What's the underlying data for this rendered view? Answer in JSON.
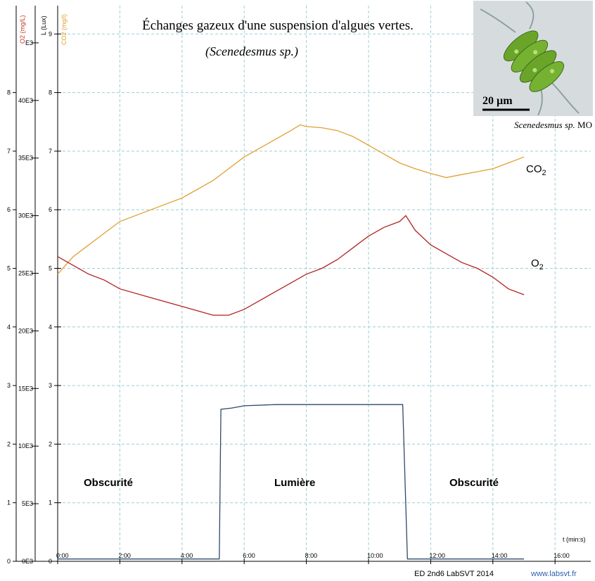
{
  "title": "Échanges gazeux d'une suspension d'algues vertes.",
  "subtitle": "(Scenedesmus sp.)",
  "photo": {
    "scale_bar": "20 µm",
    "caption_species": "Scenedesmus sp.",
    "caption_suffix": " MO"
  },
  "labels": {
    "co2_main": "CO",
    "co2_sub": "2",
    "o2_main": "O",
    "o2_sub": "2",
    "phase_dark_1": "Obscurité",
    "phase_light": "Lumière",
    "phase_dark_2": "Obscurité"
  },
  "axis_names": {
    "o2": "O2 (mg/L)",
    "lux": "L (Lux)",
    "co2": "CO2 (mg/l)",
    "time": "t (min:s)"
  },
  "footer": {
    "left": "ED 2nd6 LabSVT 2014",
    "right": "www.labsvt.fr"
  },
  "colors": {
    "o2": "#b22222",
    "co2": "#e0a030",
    "light": "#2e4a68",
    "grid": "#9ecdd6",
    "o2_axis_label": "#c0392b",
    "co2_axis_label": "#e0a030",
    "footer_link": "#2f5fb0"
  },
  "chart_data": {
    "type": "line",
    "x_label": "t (min:s)",
    "x_ticks": [
      "0:00",
      "2:00",
      "4:00",
      "6:00",
      "8:00",
      "10:00",
      "12:00",
      "14:00",
      "16:00"
    ],
    "xlim_minutes": [
      0,
      16.2
    ],
    "axes": {
      "o2": {
        "label": "O2 (mg/L)",
        "range": [
          0,
          8.5
        ],
        "ticks": [
          "0",
          "1",
          "2",
          "3",
          "4",
          "5",
          "6",
          "7",
          "8"
        ]
      },
      "lux": {
        "label": "L (Lux)",
        "range": [
          0,
          42500
        ],
        "ticks": [
          "0E3",
          "5E3",
          "10E3",
          "15E3",
          "20E3",
          "25E3",
          "30E3",
          "35E3",
          "40E3",
          "E3"
        ]
      },
      "co2": {
        "label": "CO2 (mg/l)",
        "range": [
          0,
          9.5
        ],
        "ticks": [
          "0",
          "1",
          "2",
          "3",
          "4",
          "5",
          "6",
          "7",
          "8",
          "9"
        ]
      }
    },
    "series": [
      {
        "name": "CO2",
        "axis": "co2",
        "x": [
          0,
          0.5,
          1,
          1.5,
          2,
          3,
          4,
          5,
          5.5,
          6,
          6.5,
          7,
          7.5,
          7.8,
          8,
          8.5,
          9,
          9.5,
          10,
          10.5,
          11,
          11.5,
          12,
          12.5,
          13,
          13.5,
          14,
          14.5,
          15
        ],
        "y": [
          4.9,
          5.2,
          5.4,
          5.6,
          5.8,
          6.0,
          6.2,
          6.5,
          6.7,
          6.9,
          7.05,
          7.2,
          7.35,
          7.45,
          7.42,
          7.4,
          7.35,
          7.25,
          7.1,
          6.95,
          6.8,
          6.7,
          6.62,
          6.55,
          6.6,
          6.65,
          6.7,
          6.8,
          6.9
        ]
      },
      {
        "name": "O2",
        "axis": "o2",
        "x": [
          0,
          0.5,
          1,
          1.5,
          2,
          3,
          4,
          5,
          5.5,
          6,
          6.5,
          7,
          7.5,
          8,
          8.5,
          9,
          9.5,
          10,
          10.5,
          11,
          11.2,
          11.5,
          12,
          12.5,
          13,
          13.5,
          14,
          14.5,
          15
        ],
        "y": [
          5.2,
          5.05,
          4.9,
          4.8,
          4.65,
          4.5,
          4.35,
          4.2,
          4.2,
          4.3,
          4.45,
          4.6,
          4.75,
          4.9,
          5.0,
          5.15,
          5.35,
          5.55,
          5.7,
          5.8,
          5.9,
          5.65,
          5.4,
          5.25,
          5.1,
          5.0,
          4.85,
          4.65,
          4.55
        ]
      },
      {
        "name": "L",
        "axis": "lux",
        "x": [
          0,
          5.2,
          5.25,
          5.6,
          6,
          7,
          8,
          9,
          10,
          11,
          11.1,
          11.25,
          12,
          13,
          14,
          15
        ],
        "y": [
          200,
          200,
          13200,
          13300,
          13500,
          13600,
          13600,
          13600,
          13600,
          13600,
          13600,
          200,
          200,
          200,
          200,
          200
        ]
      }
    ]
  }
}
